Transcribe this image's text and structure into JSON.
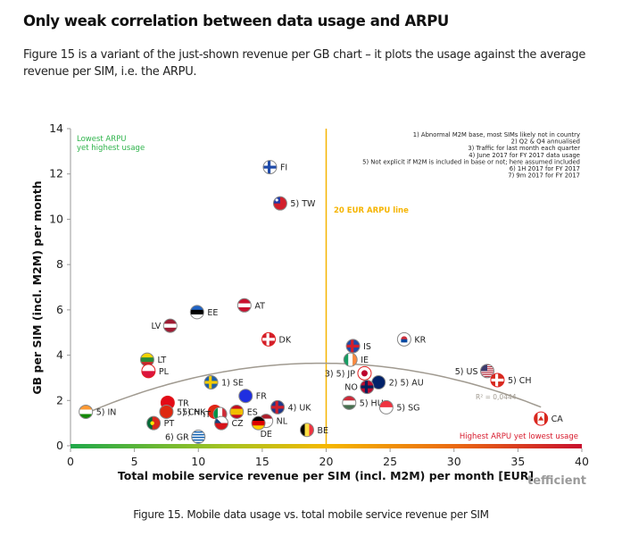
{
  "page": {
    "heading": "Only weak correlation between data usage and ARPU",
    "paragraph": "Figure 15 is a variant of the just-shown revenue per GB chart – it plots the usage against the average revenue per SIM, i.e. the ARPU.",
    "caption": "Figure 15. Mobile data usage vs. total mobile service revenue per SIM"
  },
  "chart_data": {
    "type": "scatter",
    "title": "",
    "xlabel": "Total mobile service revenue per SIM (incl. M2M) per month [EUR]",
    "ylabel": "GB per SIM (incl. M2M) per month",
    "xlim": [
      0,
      40
    ],
    "ylim": [
      0,
      14
    ],
    "xticks": [
      0,
      5,
      10,
      15,
      20,
      25,
      30,
      35,
      40
    ],
    "yticks": [
      0,
      2,
      4,
      6,
      8,
      10,
      12,
      14
    ],
    "grid": false,
    "brand": "tefficient",
    "reference_line": {
      "x": 20,
      "label": "20 EUR ARPU line",
      "color": "#f5b400"
    },
    "trendline": {
      "type": "polynomial",
      "r_squared_label": "R² = 0,0444",
      "color": "#a09a90"
    },
    "annotations": {
      "top_left": [
        "Lowest ARPU",
        "yet highest usage"
      ],
      "top_left_color": "#2db34a",
      "bottom_right": "Highest ARPU yet lowest usage",
      "bottom_right_color": "#d7192b"
    },
    "footnotes": [
      "1) Abnormal M2M base, most SIMs likely not in country",
      "2) Q2 & Q4 annualised",
      "3) Traffic for last month each quarter",
      "4) June 2017 for FY 2017 data usage",
      "5) Not explicit if M2M is included in base or not; here assumed included",
      "6) 1H 2017 for FY 2017",
      "7) 9m 2017 for FY 2017"
    ],
    "points": [
      {
        "label": "FI",
        "x": 15.6,
        "y": 12.3,
        "flag": "fi"
      },
      {
        "label": "5) TW",
        "x": 16.4,
        "y": 10.7,
        "flag": "tw"
      },
      {
        "label": "AT",
        "x": 13.6,
        "y": 6.2,
        "flag": "at"
      },
      {
        "label": "EE",
        "x": 9.9,
        "y": 5.9,
        "flag": "ee"
      },
      {
        "label": "LV",
        "x": 7.8,
        "y": 5.3,
        "flag": "lv"
      },
      {
        "label": "DK",
        "x": 15.5,
        "y": 4.7,
        "flag": "dk"
      },
      {
        "label": "LT",
        "x": 6.0,
        "y": 3.8,
        "flag": "lt"
      },
      {
        "label": "PL",
        "x": 6.1,
        "y": 3.3,
        "flag": "pl"
      },
      {
        "label": "1) SE",
        "x": 11.0,
        "y": 2.8,
        "flag": "se"
      },
      {
        "label": "FR",
        "x": 13.7,
        "y": 2.2,
        "flag": "fr"
      },
      {
        "label": "TR",
        "x": 7.6,
        "y": 1.9,
        "flag": "tr"
      },
      {
        "label": "5) HK",
        "x": 11.3,
        "y": 1.5,
        "flag": "hk"
      },
      {
        "label": "5) CN",
        "x": 7.5,
        "y": 1.5,
        "flag": "cn"
      },
      {
        "label": "IT",
        "x": 11.7,
        "y": 1.4,
        "flag": "it"
      },
      {
        "label": "ES",
        "x": 13.0,
        "y": 1.5,
        "flag": "es"
      },
      {
        "label": "CZ",
        "x": 11.8,
        "y": 1.0,
        "flag": "cz"
      },
      {
        "label": "4) UK",
        "x": 16.2,
        "y": 1.7,
        "flag": "uk"
      },
      {
        "label": "NL",
        "x": 15.3,
        "y": 1.1,
        "flag": "nl"
      },
      {
        "label": "DE",
        "x": 14.7,
        "y": 1.0,
        "flag": "de"
      },
      {
        "label": "BE",
        "x": 18.5,
        "y": 0.7,
        "flag": "be"
      },
      {
        "label": "PT",
        "x": 6.5,
        "y": 1.0,
        "flag": "pt"
      },
      {
        "label": "6) GR",
        "x": 10.0,
        "y": 0.4,
        "flag": "gr"
      },
      {
        "label": "5) IN",
        "x": 1.2,
        "y": 1.5,
        "flag": "in"
      },
      {
        "label": "IS",
        "x": 22.1,
        "y": 4.4,
        "flag": "is"
      },
      {
        "label": "KR",
        "x": 26.1,
        "y": 4.7,
        "flag": "kr"
      },
      {
        "label": "IE",
        "x": 21.9,
        "y": 3.8,
        "flag": "ie"
      },
      {
        "label": "3) 5) JP",
        "x": 23.0,
        "y": 3.2,
        "flag": "jp"
      },
      {
        "label": "2) 5) AU",
        "x": 24.1,
        "y": 2.8,
        "flag": "au"
      },
      {
        "label": "NO",
        "x": 23.2,
        "y": 2.6,
        "flag": "no"
      },
      {
        "label": "5) HU",
        "x": 21.8,
        "y": 1.9,
        "flag": "hu"
      },
      {
        "label": "5) SG",
        "x": 24.7,
        "y": 1.7,
        "flag": "sg"
      },
      {
        "label": "5) US",
        "x": 32.6,
        "y": 3.3,
        "flag": "us"
      },
      {
        "label": "5) CH",
        "x": 33.4,
        "y": 2.9,
        "flag": "ch"
      },
      {
        "label": "CA",
        "x": 36.8,
        "y": 1.2,
        "flag": "ca"
      }
    ]
  }
}
